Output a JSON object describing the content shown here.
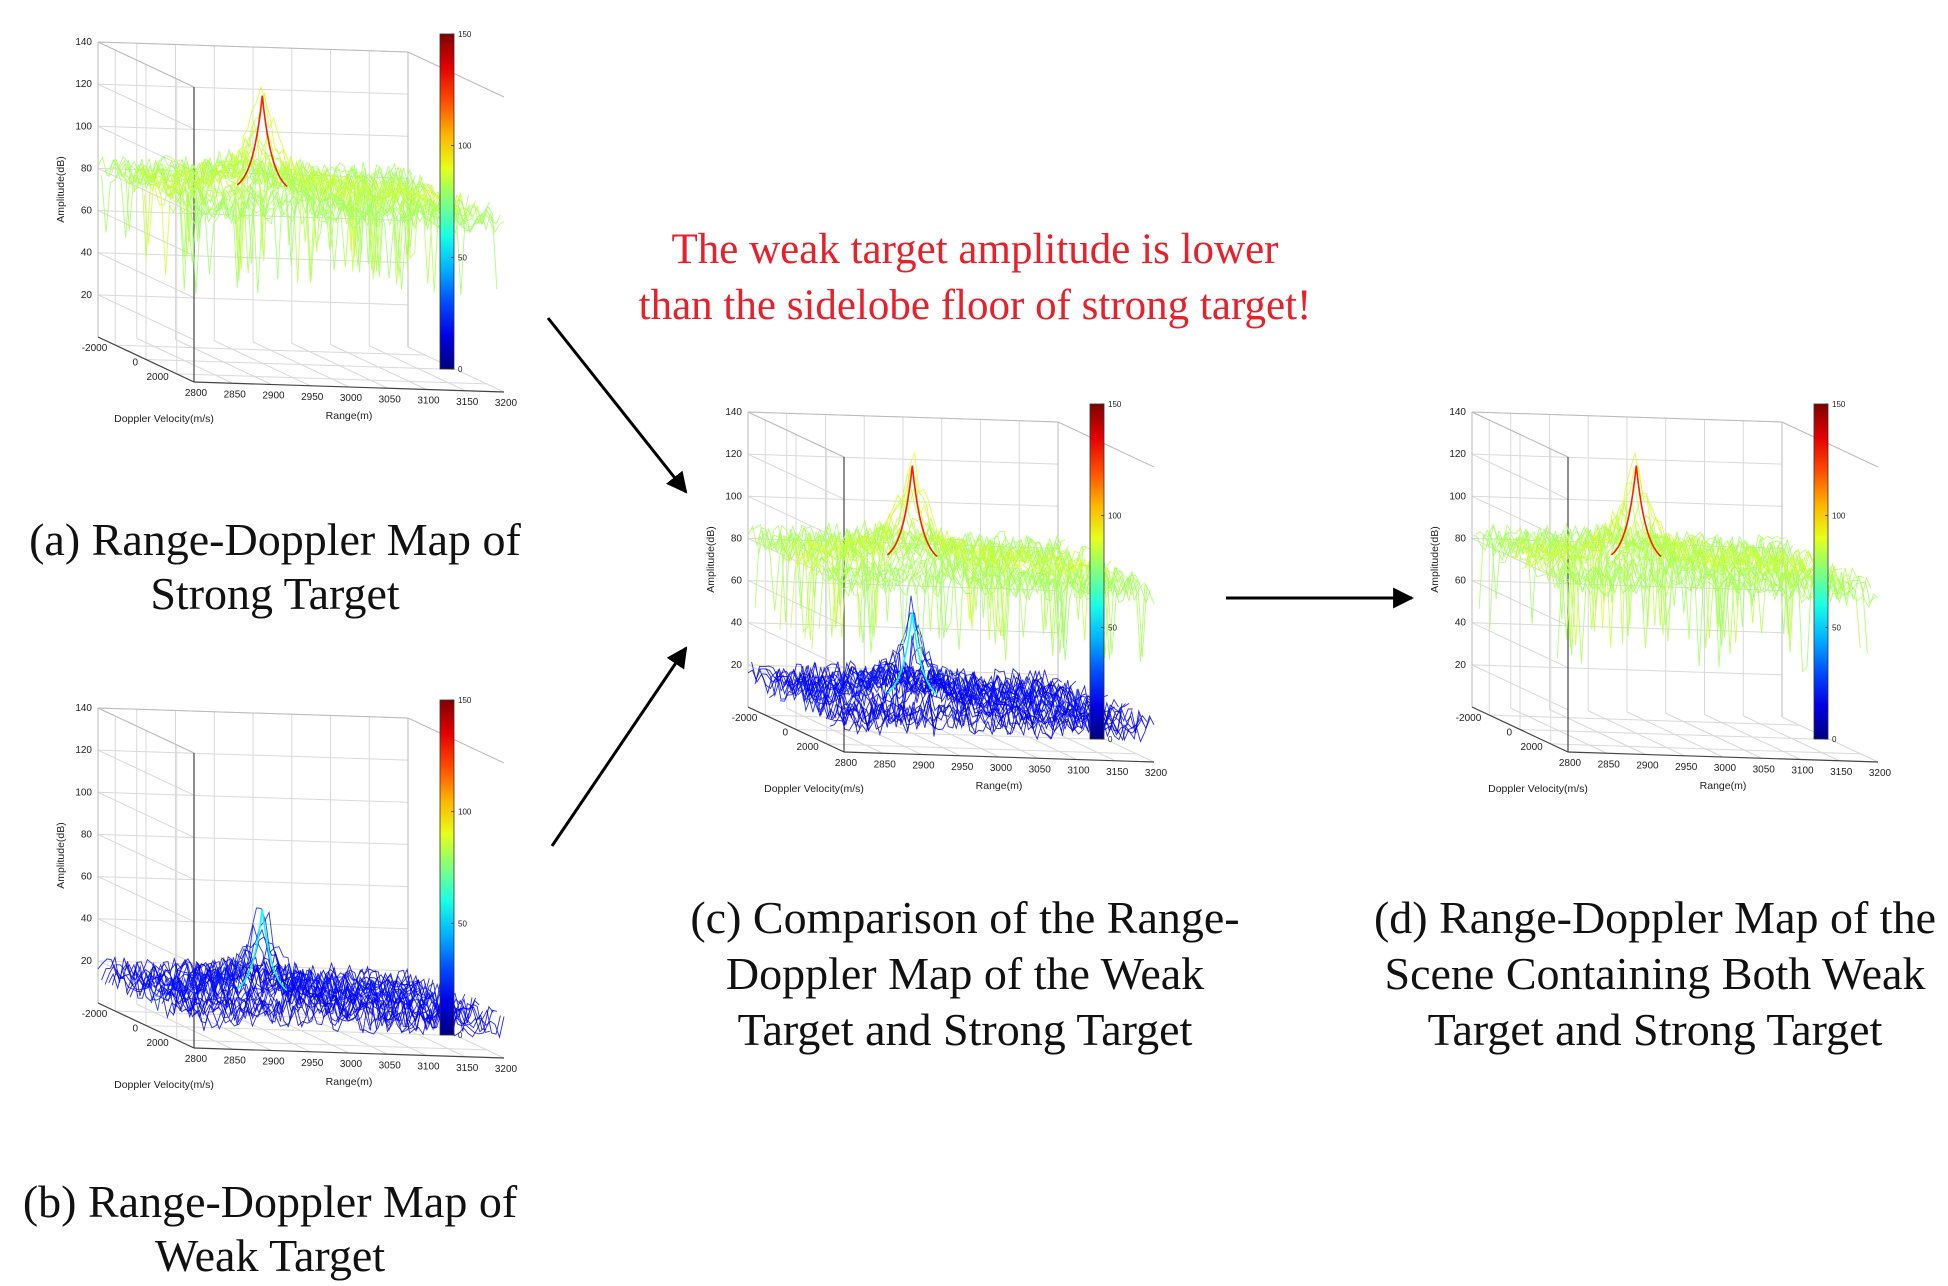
{
  "annotation": {
    "line1": "The weak target  amplitude is lower",
    "line2": "than the sidelobe floor of strong target!"
  },
  "panels": [
    {
      "id": "a",
      "caption": [
        "(a) Range-Doppler Map of",
        "Strong Target"
      ]
    },
    {
      "id": "b",
      "caption": [
        "(b) Range-Doppler Map of",
        "Weak Target"
      ]
    },
    {
      "id": "c",
      "caption": [
        "(c) Comparison of the Range-",
        "Doppler Map of the Weak",
        "Target and Strong Target"
      ]
    },
    {
      "id": "d",
      "caption": [
        "(d) Range-Doppler Map of the",
        "Scene Containing Both Weak",
        "Target and Strong Target"
      ]
    }
  ],
  "chart_data": [
    {
      "panel": "a",
      "type": "surface",
      "title": "",
      "xlabel": "Range(m)",
      "ylabel": "Doppler Velocity(m/s)",
      "zlabel": "Amplitude(dB)",
      "xticks": [
        "2800",
        "2850",
        "2900",
        "2950",
        "3000",
        "3050",
        "3100",
        "3150",
        "3200"
      ],
      "yticks": [
        "-2000",
        "0",
        "2000"
      ],
      "zticks": [
        "20",
        "40",
        "60",
        "80",
        "100",
        "120",
        "140"
      ],
      "colorbar_ticks": [
        "0",
        "50",
        "100",
        "150"
      ],
      "colorbar_range": [
        0,
        150
      ],
      "series": [
        {
          "name": "Strong Target",
          "peak_db": 127,
          "floor_db": 80,
          "dips_db": 40,
          "peak_range_m": 2950
        }
      ]
    },
    {
      "panel": "b",
      "type": "surface",
      "title": "",
      "xlabel": "Range(m)",
      "ylabel": "Doppler Velocity(m/s)",
      "zlabel": "Amplitude(dB)",
      "xticks": [
        "2800",
        "2850",
        "2900",
        "2950",
        "3000",
        "3050",
        "3100",
        "3150",
        "3200"
      ],
      "yticks": [
        "-2000",
        "0",
        "2000"
      ],
      "zticks": [
        "20",
        "40",
        "60",
        "80",
        "100",
        "120",
        "140"
      ],
      "colorbar_ticks": [
        "0",
        "50",
        "100",
        "150"
      ],
      "colorbar_range": [
        0,
        150
      ],
      "series": [
        {
          "name": "Weak Target",
          "peak_db": 57,
          "floor_db": 15,
          "dips_db": 5,
          "peak_range_m": 2950
        }
      ]
    },
    {
      "panel": "c",
      "type": "surface",
      "title": "",
      "xlabel": "Range(m)",
      "ylabel": "Doppler Velocity(m/s)",
      "zlabel": "Amplitude(dB)",
      "xticks": [
        "2800",
        "2850",
        "2900",
        "2950",
        "3000",
        "3050",
        "3100",
        "3150",
        "3200"
      ],
      "yticks": [
        "-2000",
        "0",
        "2000"
      ],
      "zticks": [
        "20",
        "40",
        "60",
        "80",
        "100",
        "120",
        "140"
      ],
      "colorbar_ticks": [
        "0",
        "50",
        "100",
        "150"
      ],
      "colorbar_range": [
        0,
        150
      ],
      "series": [
        {
          "name": "Strong Target",
          "peak_db": 127,
          "floor_db": 80,
          "dips_db": 40,
          "peak_range_m": 2950
        },
        {
          "name": "Weak Target",
          "peak_db": 57,
          "floor_db": 15,
          "dips_db": 5,
          "peak_range_m": 2950
        }
      ]
    },
    {
      "panel": "d",
      "type": "surface",
      "title": "",
      "xlabel": "Range(m)",
      "ylabel": "Doppler Velocity(m/s)",
      "zlabel": "Amplitude(dB)",
      "xticks": [
        "2800",
        "2850",
        "2900",
        "2950",
        "3000",
        "3050",
        "3100",
        "3150",
        "3200"
      ],
      "yticks": [
        "-2000",
        "0",
        "2000"
      ],
      "zticks": [
        "20",
        "40",
        "60",
        "80",
        "100",
        "120",
        "140"
      ],
      "colorbar_ticks": [
        "0",
        "50",
        "100",
        "150"
      ],
      "colorbar_range": [
        0,
        150
      ],
      "series": [
        {
          "name": "Both Targets",
          "peak_db": 127,
          "floor_db": 80,
          "dips_db": 40,
          "peak_range_m": 2950
        }
      ]
    }
  ]
}
